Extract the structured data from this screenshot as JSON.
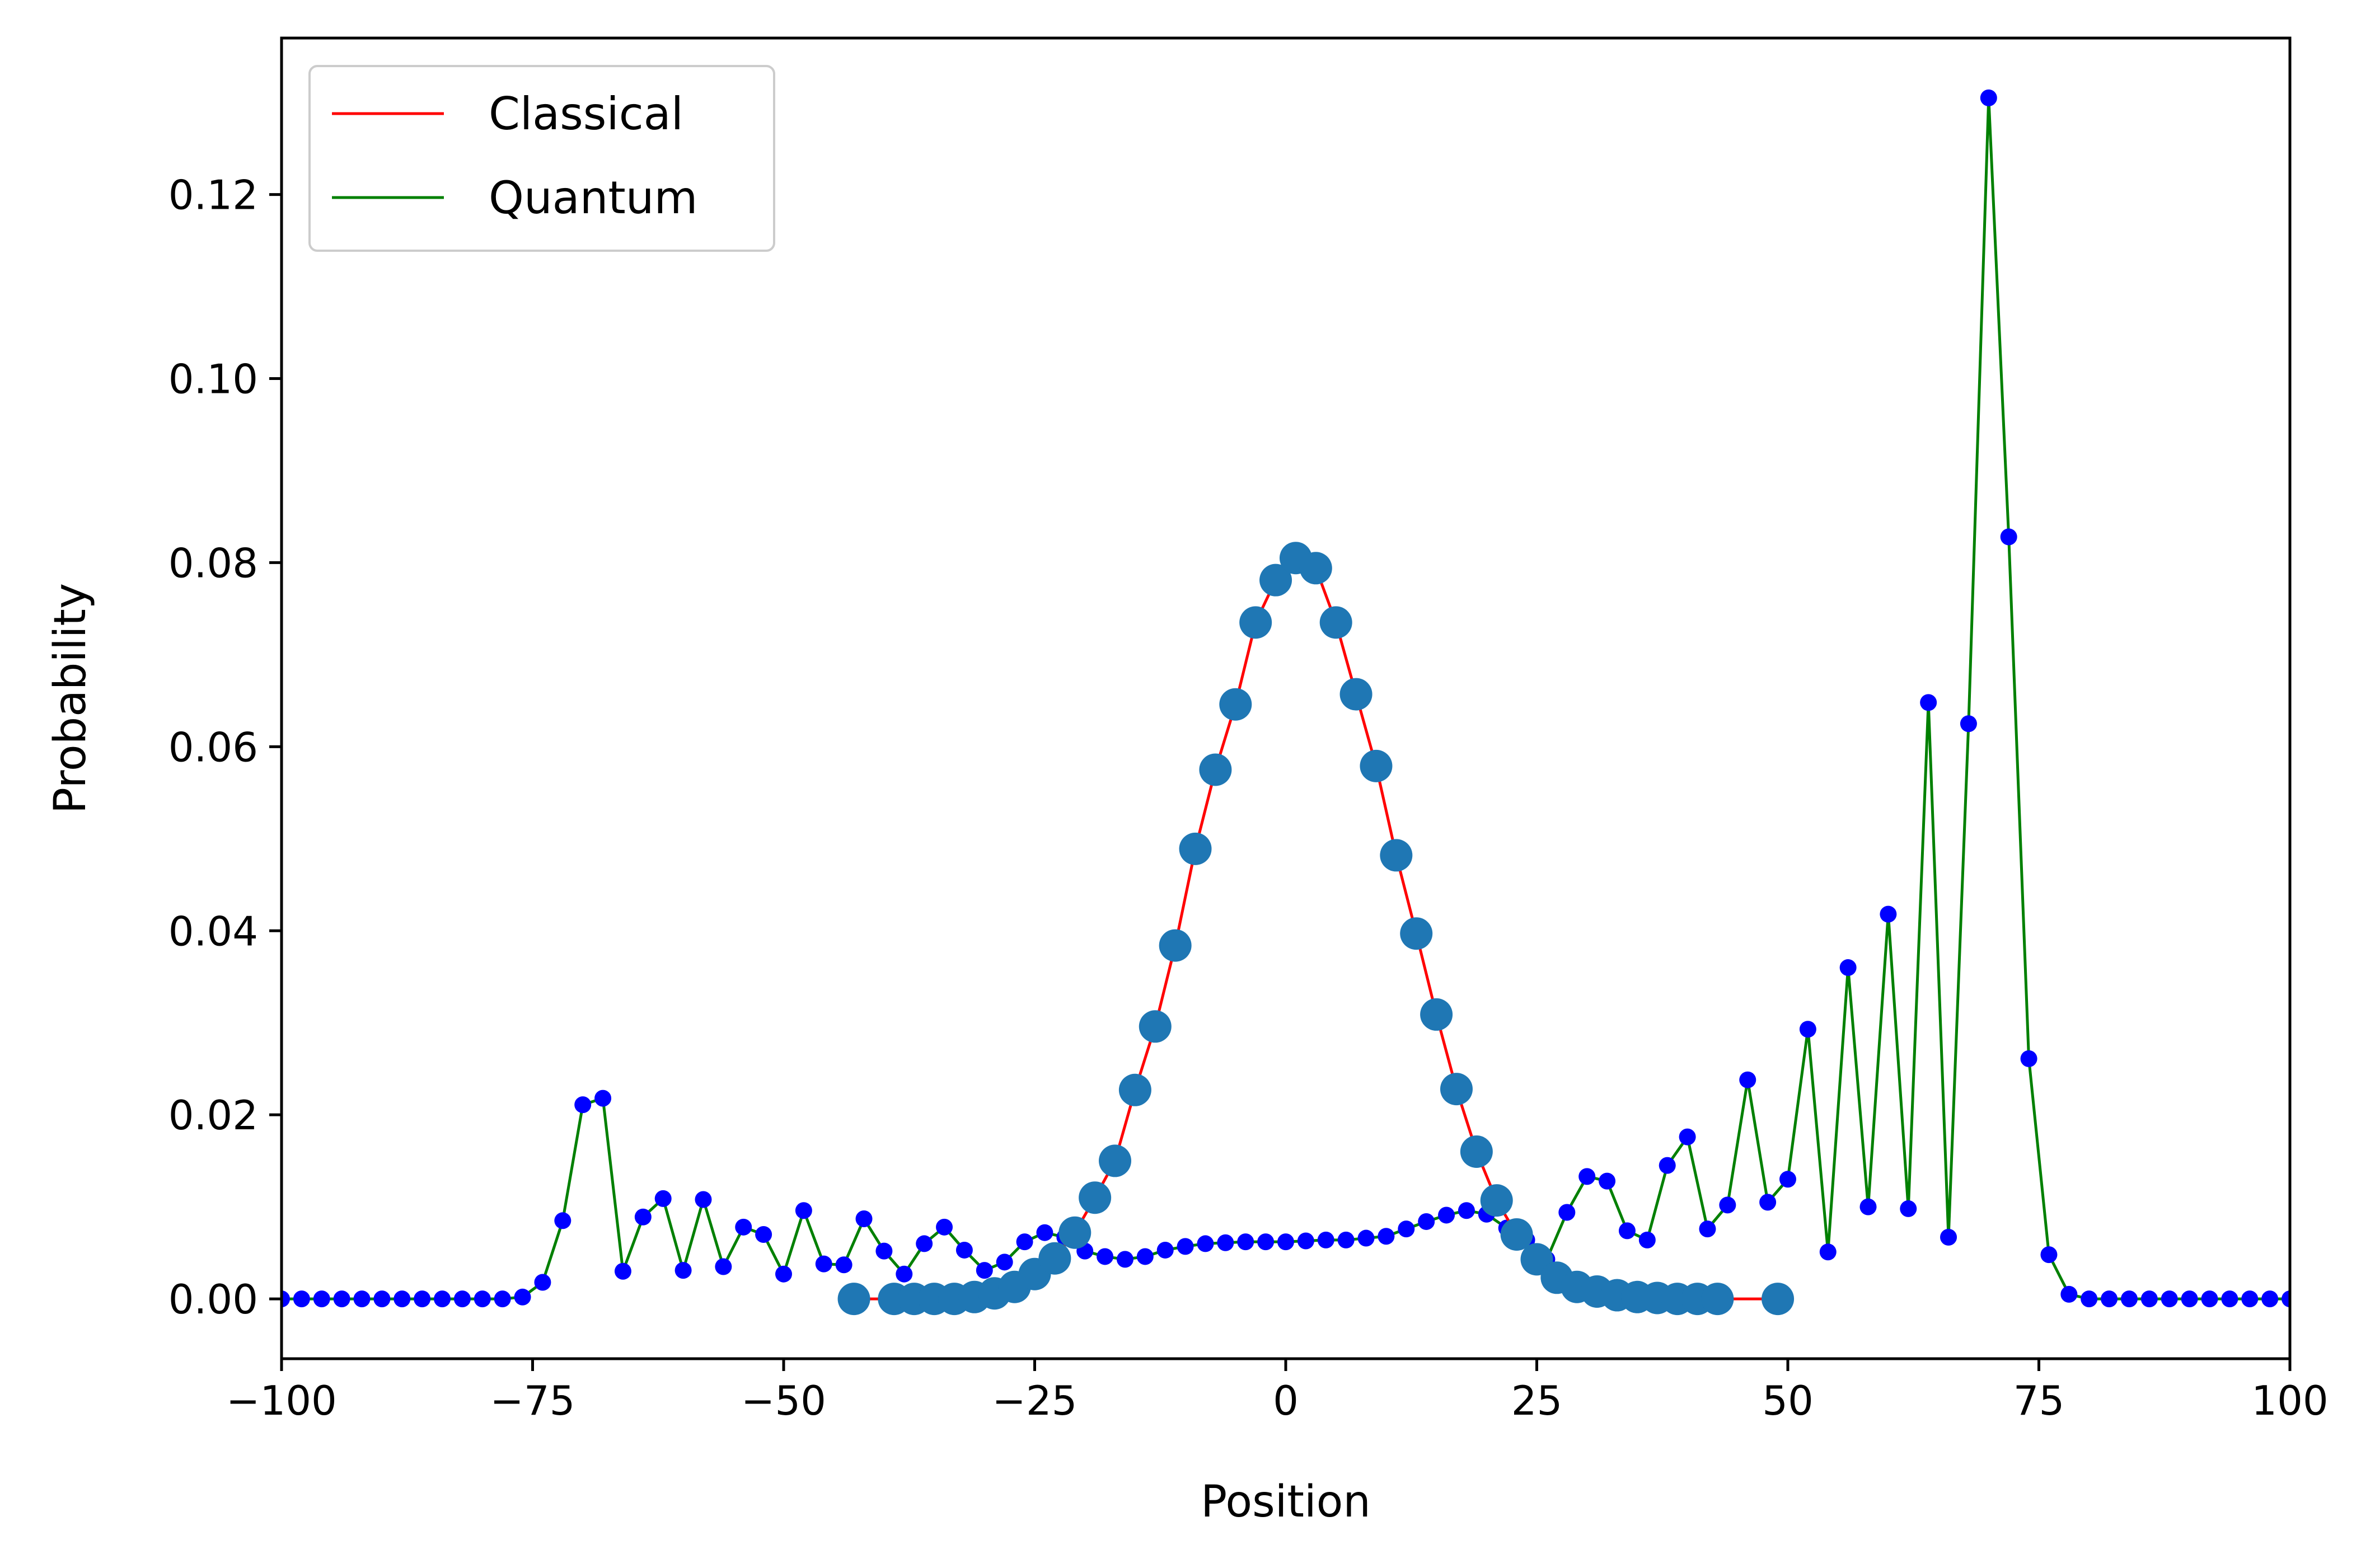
{
  "chart_data": {
    "type": "line",
    "title": "",
    "xlabel": "Position",
    "ylabel": "Probability",
    "xlim": [
      -100,
      100
    ],
    "ylim": [
      -0.0065,
      0.137
    ],
    "xticks": [
      -100,
      -75,
      -50,
      -25,
      0,
      25,
      50,
      75,
      100
    ],
    "xtick_labels": [
      "−100",
      "−75",
      "−50",
      "−25",
      "0",
      "25",
      "50",
      "75",
      "100"
    ],
    "yticks": [
      0.0,
      0.02,
      0.04,
      0.06,
      0.08,
      0.1,
      0.12
    ],
    "ytick_labels": [
      "0.00",
      "0.02",
      "0.04",
      "0.06",
      "0.08",
      "0.10",
      "0.12"
    ],
    "grid": false,
    "legend_position": "top-left",
    "series": [
      {
        "name": "Classical",
        "line_color": "#ff0000",
        "marker_color": "#1f77b4",
        "marker_size": "large",
        "x": [
          -43,
          -39,
          -37,
          -35,
          -33,
          -31,
          -29,
          -27,
          -25,
          -23,
          -21,
          -19,
          -17,
          -15,
          -13,
          -11,
          -9,
          -7,
          -5,
          -3,
          -1,
          1,
          3,
          5,
          7,
          9,
          11,
          13,
          15,
          17,
          19,
          21,
          23,
          25,
          27,
          29,
          31,
          33,
          35,
          37,
          39,
          41,
          43,
          49
        ],
        "y": [
          0.0,
          0.0,
          0.0,
          0.0,
          0.0,
          0.0002,
          0.0006,
          0.0013,
          0.0027,
          0.0044,
          0.0072,
          0.011,
          0.015,
          0.0227,
          0.0296,
          0.0384,
          0.0489,
          0.0575,
          0.0646,
          0.0735,
          0.0781,
          0.0805,
          0.0794,
          0.0735,
          0.0657,
          0.0579,
          0.0482,
          0.0397,
          0.0309,
          0.0228,
          0.016,
          0.0107,
          0.007,
          0.0043,
          0.0023,
          0.0013,
          0.0008,
          0.0004,
          0.0002,
          0.0001,
          0.0,
          0.0,
          0.0,
          0.0
        ]
      },
      {
        "name": "Quantum",
        "line_color": "#008000",
        "marker_color": "#0000ff",
        "marker_size": "small",
        "x": [
          -100,
          -98,
          -96,
          -94,
          -92,
          -90,
          -88,
          -86,
          -84,
          -82,
          -80,
          -78,
          -76,
          -74,
          -72,
          -70,
          -68,
          -66,
          -64,
          -62,
          -60,
          -58,
          -56,
          -54,
          -52,
          -50,
          -48,
          -46,
          -44,
          -42,
          -40,
          -38,
          -36,
          -34,
          -32,
          -30,
          -28,
          -26,
          -24,
          -22,
          -20,
          -18,
          -16,
          -14,
          -12,
          -10,
          -8,
          -6,
          -4,
          -2,
          0,
          2,
          4,
          6,
          8,
          10,
          12,
          14,
          16,
          18,
          20,
          22,
          24,
          26,
          28,
          30,
          32,
          34,
          36,
          38,
          40,
          42,
          44,
          46,
          48,
          50,
          52,
          54,
          56,
          58,
          60,
          62,
          64,
          66,
          68,
          70,
          72,
          74,
          76,
          78,
          80,
          82,
          84,
          86,
          88,
          90,
          92,
          94,
          96,
          98,
          100
        ],
        "y": [
          0.0,
          0.0,
          0.0,
          0.0,
          0.0,
          0.0,
          0.0,
          0.0,
          0.0,
          0.0,
          0.0,
          0.0,
          0.0002,
          0.0018,
          0.0085,
          0.0211,
          0.0218,
          0.003,
          0.0089,
          0.0109,
          0.0031,
          0.0108,
          0.0035,
          0.0078,
          0.007,
          0.0027,
          0.0096,
          0.0038,
          0.0037,
          0.0087,
          0.0052,
          0.0027,
          0.006,
          0.0078,
          0.0053,
          0.0031,
          0.004,
          0.0062,
          0.0072,
          0.0067,
          0.0052,
          0.0046,
          0.0043,
          0.0046,
          0.0053,
          0.0057,
          0.006,
          0.0061,
          0.0062,
          0.0062,
          0.0062,
          0.0063,
          0.0064,
          0.0064,
          0.0066,
          0.0068,
          0.0076,
          0.0084,
          0.0091,
          0.0096,
          0.0092,
          0.0077,
          0.0064,
          0.0043,
          0.0094,
          0.0133,
          0.0128,
          0.0074,
          0.0064,
          0.0145,
          0.0176,
          0.0076,
          0.0102,
          0.0238,
          0.0105,
          0.013,
          0.0293,
          0.0051,
          0.036,
          0.01,
          0.0418,
          0.0098,
          0.0648,
          0.0067,
          0.0625,
          0.1305,
          0.0828,
          0.0261,
          0.0048,
          0.0005,
          0.0,
          0.0,
          0.0,
          0.0,
          0.0,
          0.0,
          0.0,
          0.0,
          0.0,
          0.0,
          0.0
        ]
      }
    ]
  }
}
